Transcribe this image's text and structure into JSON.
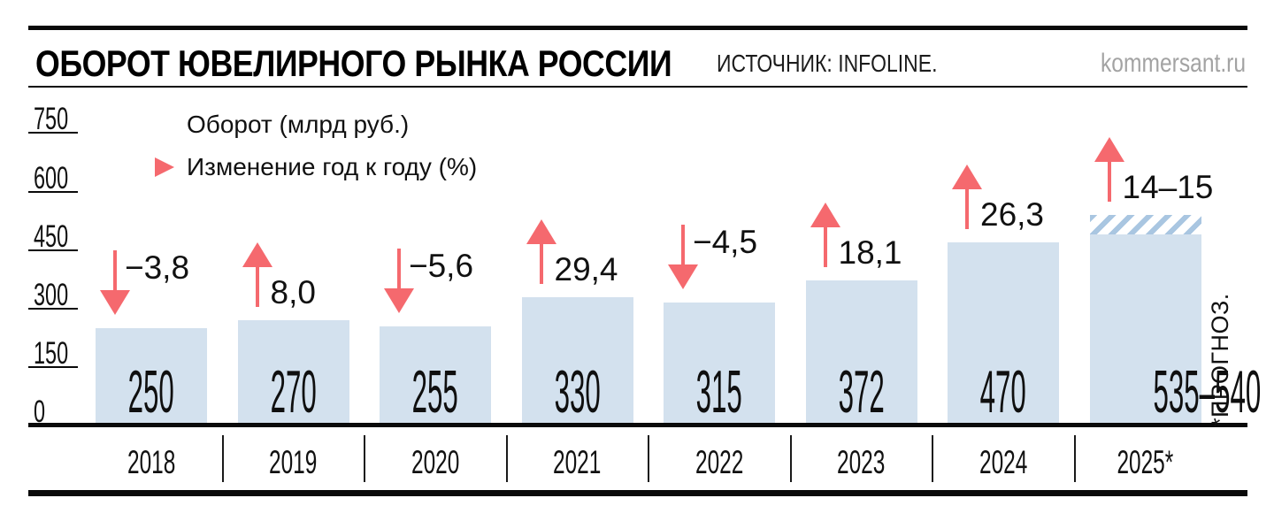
{
  "header": {
    "title": "ОБОРОТ ЮВЕЛИРНОГО РЫНКА РОССИИ",
    "source": "ИСТОЧНИК: INFOLINE.",
    "site": "kommersant.ru"
  },
  "legend": {
    "turnover_label": "Оборот (млрд руб.)",
    "change_label": "Изменение год к году (%)"
  },
  "footnote": "*ПРОГНОЗ.",
  "colors": {
    "bar_fill": "#d3e1ee",
    "hatch_stripe": "#a9c6e1",
    "arrow_pink": "#f5696e",
    "site_gray": "#a3a3a3",
    "line_black": "#0a0a0a"
  },
  "chart_data": {
    "type": "bar",
    "title": "Оборот ювелирного рынка России",
    "unit": "млрд руб.",
    "ylim": [
      0,
      750
    ],
    "yticks": [
      0,
      150,
      300,
      450,
      600,
      750
    ],
    "grid": false,
    "legend_position": "top-left",
    "categories": [
      "2018",
      "2019",
      "2020",
      "2021",
      "2022",
      "2023",
      "2024",
      "2025*"
    ],
    "bars": [
      {
        "year": "2018",
        "value": 250,
        "label": "250",
        "change": -3.8,
        "change_label": "−3,8",
        "change_dir": "down"
      },
      {
        "year": "2019",
        "value": 270,
        "label": "270",
        "change": 8.0,
        "change_label": "8,0",
        "change_dir": "up"
      },
      {
        "year": "2020",
        "value": 255,
        "label": "255",
        "change": -5.6,
        "change_label": "−5,6",
        "change_dir": "down"
      },
      {
        "year": "2021",
        "value": 330,
        "label": "330",
        "change": 29.4,
        "change_label": "29,4",
        "change_dir": "up"
      },
      {
        "year": "2022",
        "value": 315,
        "label": "315",
        "change": -4.5,
        "change_label": "−4,5",
        "change_dir": "down"
      },
      {
        "year": "2023",
        "value": 372,
        "label": "372",
        "change": 18.1,
        "change_label": "18,1",
        "change_dir": "up"
      },
      {
        "year": "2024",
        "value": 470,
        "label": "470",
        "change": 26.3,
        "change_label": "26,3",
        "change_dir": "up"
      },
      {
        "year": "2025*",
        "value": 540,
        "value_range": [
          535,
          540
        ],
        "label": "535–540",
        "change_label": "14–15",
        "change_dir": "up",
        "forecast": true,
        "hatch_from": 490
      }
    ]
  }
}
